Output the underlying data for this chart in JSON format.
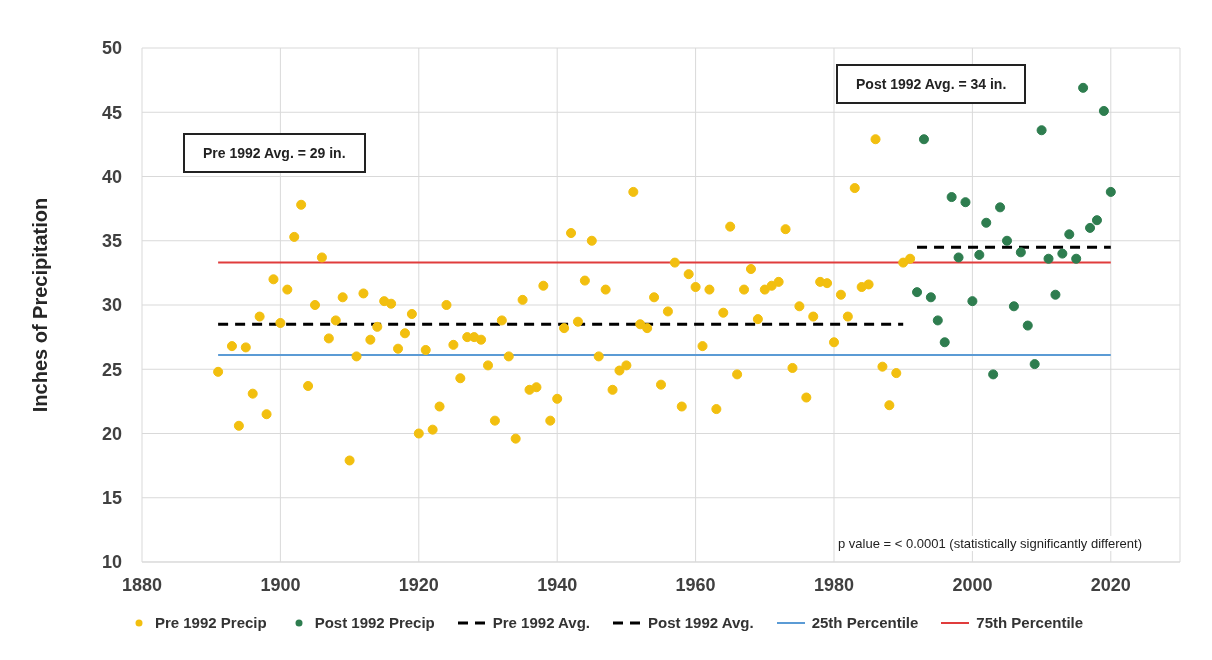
{
  "chart_data": {
    "type": "scatter",
    "ylabel": "Inches of Precipitation",
    "xlim": [
      1880,
      2030
    ],
    "xticks": [
      1880,
      1900,
      1920,
      1940,
      1960,
      1980,
      2000,
      2020
    ],
    "ylim": [
      10,
      50
    ],
    "yticks": [
      10,
      15,
      20,
      25,
      30,
      35,
      40,
      45,
      50
    ],
    "grid": true,
    "legend": "bottom",
    "marker": "circle",
    "annotations": [
      "Pre 1992 Avg. = 29 in.",
      "Post 1992 Avg. = 34 in.",
      "p value = < 0.0001 (statistically significantly different)"
    ],
    "series": [
      {
        "name": "Pre 1992 Precip",
        "color": "#f2bf0f",
        "x": [
          1891,
          1893,
          1894,
          1895,
          1896,
          1897,
          1898,
          1899,
          1900,
          1901,
          1902,
          1903,
          1904,
          1905,
          1906,
          1907,
          1908,
          1909,
          1910,
          1911,
          1912,
          1913,
          1914,
          1915,
          1916,
          1917,
          1918,
          1919,
          1920,
          1921,
          1922,
          1923,
          1924,
          1925,
          1926,
          1927,
          1928,
          1929,
          1930,
          1931,
          1932,
          1933,
          1934,
          1935,
          1936,
          1937,
          1938,
          1939,
          1940,
          1941,
          1942,
          1943,
          1944,
          1945,
          1946,
          1947,
          1948,
          1949,
          1950,
          1951,
          1952,
          1953,
          1954,
          1955,
          1956,
          1957,
          1958,
          1959,
          1960,
          1961,
          1962,
          1963,
          1964,
          1965,
          1966,
          1967,
          1968,
          1969,
          1970,
          1971,
          1972,
          1973,
          1974,
          1975,
          1976,
          1977,
          1978,
          1979,
          1980,
          1981,
          1982,
          1983,
          1984,
          1985,
          1986,
          1987,
          1988,
          1989,
          1990,
          1991
        ],
        "values": [
          24.8,
          26.8,
          20.6,
          26.7,
          23.1,
          29.1,
          21.5,
          32.0,
          28.6,
          31.2,
          35.3,
          37.8,
          23.7,
          30.0,
          33.7,
          27.4,
          28.8,
          30.6,
          17.9,
          26.0,
          30.9,
          27.3,
          28.3,
          30.3,
          30.1,
          26.6,
          27.8,
          29.3,
          20.0,
          26.5,
          20.3,
          22.1,
          30.0,
          26.9,
          24.3,
          27.5,
          27.5,
          27.3,
          25.3,
          21.0,
          28.8,
          26.0,
          19.6,
          30.4,
          23.4,
          23.6,
          31.5,
          21.0,
          22.7,
          28.2,
          35.6,
          28.7,
          31.9,
          35.0,
          26.0,
          31.2,
          23.4,
          24.9,
          25.3,
          38.8,
          28.5,
          28.2,
          30.6,
          23.8,
          29.5,
          33.3,
          22.1,
          32.4,
          31.4,
          26.8,
          31.2,
          21.9,
          29.4,
          36.1,
          24.6,
          31.2,
          32.8,
          28.9,
          31.2,
          31.5,
          31.8,
          35.9,
          25.1,
          29.9,
          22.8,
          29.1,
          31.8,
          31.7,
          27.1,
          30.8,
          29.1,
          39.1,
          31.4,
          31.6,
          42.9,
          25.2,
          22.2,
          24.7,
          33.3,
          33.6
        ]
      },
      {
        "name": "Post 1992 Precip",
        "color": "#2e7d4f",
        "x": [
          1992,
          1993,
          1994,
          1995,
          1996,
          1997,
          1998,
          1999,
          2000,
          2001,
          2002,
          2003,
          2004,
          2005,
          2006,
          2007,
          2008,
          2009,
          2010,
          2011,
          2012,
          2013,
          2014,
          2015,
          2016,
          2017,
          2018,
          2019,
          2020
        ],
        "values": [
          31.0,
          42.9,
          30.6,
          28.8,
          27.1,
          38.4,
          33.7,
          38.0,
          30.3,
          33.9,
          36.4,
          24.6,
          37.6,
          35.0,
          29.9,
          34.1,
          28.4,
          25.4,
          43.6,
          33.6,
          30.8,
          34.0,
          35.5,
          33.6,
          46.9,
          36.0,
          36.6,
          45.1,
          38.8
        ]
      },
      {
        "name": "Pre 1992 Avg.",
        "type": "line",
        "line_style": "dashed",
        "marker": "none",
        "color": "#000000",
        "x": [
          1891,
          1990
        ],
        "values": [
          28.5,
          28.5
        ]
      },
      {
        "name": "Post 1992 Avg.",
        "type": "line",
        "line_style": "dashed",
        "marker": "none",
        "color": "#000000",
        "x": [
          1992,
          2020
        ],
        "values": [
          34.5,
          34.5
        ]
      },
      {
        "name": "25th Percentile",
        "type": "line",
        "line_style": "solid",
        "marker": "none",
        "color": "#5b9bd5",
        "x": [
          1891,
          2020
        ],
        "values": [
          26.1,
          26.1
        ]
      },
      {
        "name": "75th Percentile",
        "type": "line",
        "line_style": "solid",
        "marker": "none",
        "color": "#e03c3c",
        "x": [
          1891,
          2020
        ],
        "values": [
          33.3,
          33.3
        ]
      }
    ]
  }
}
